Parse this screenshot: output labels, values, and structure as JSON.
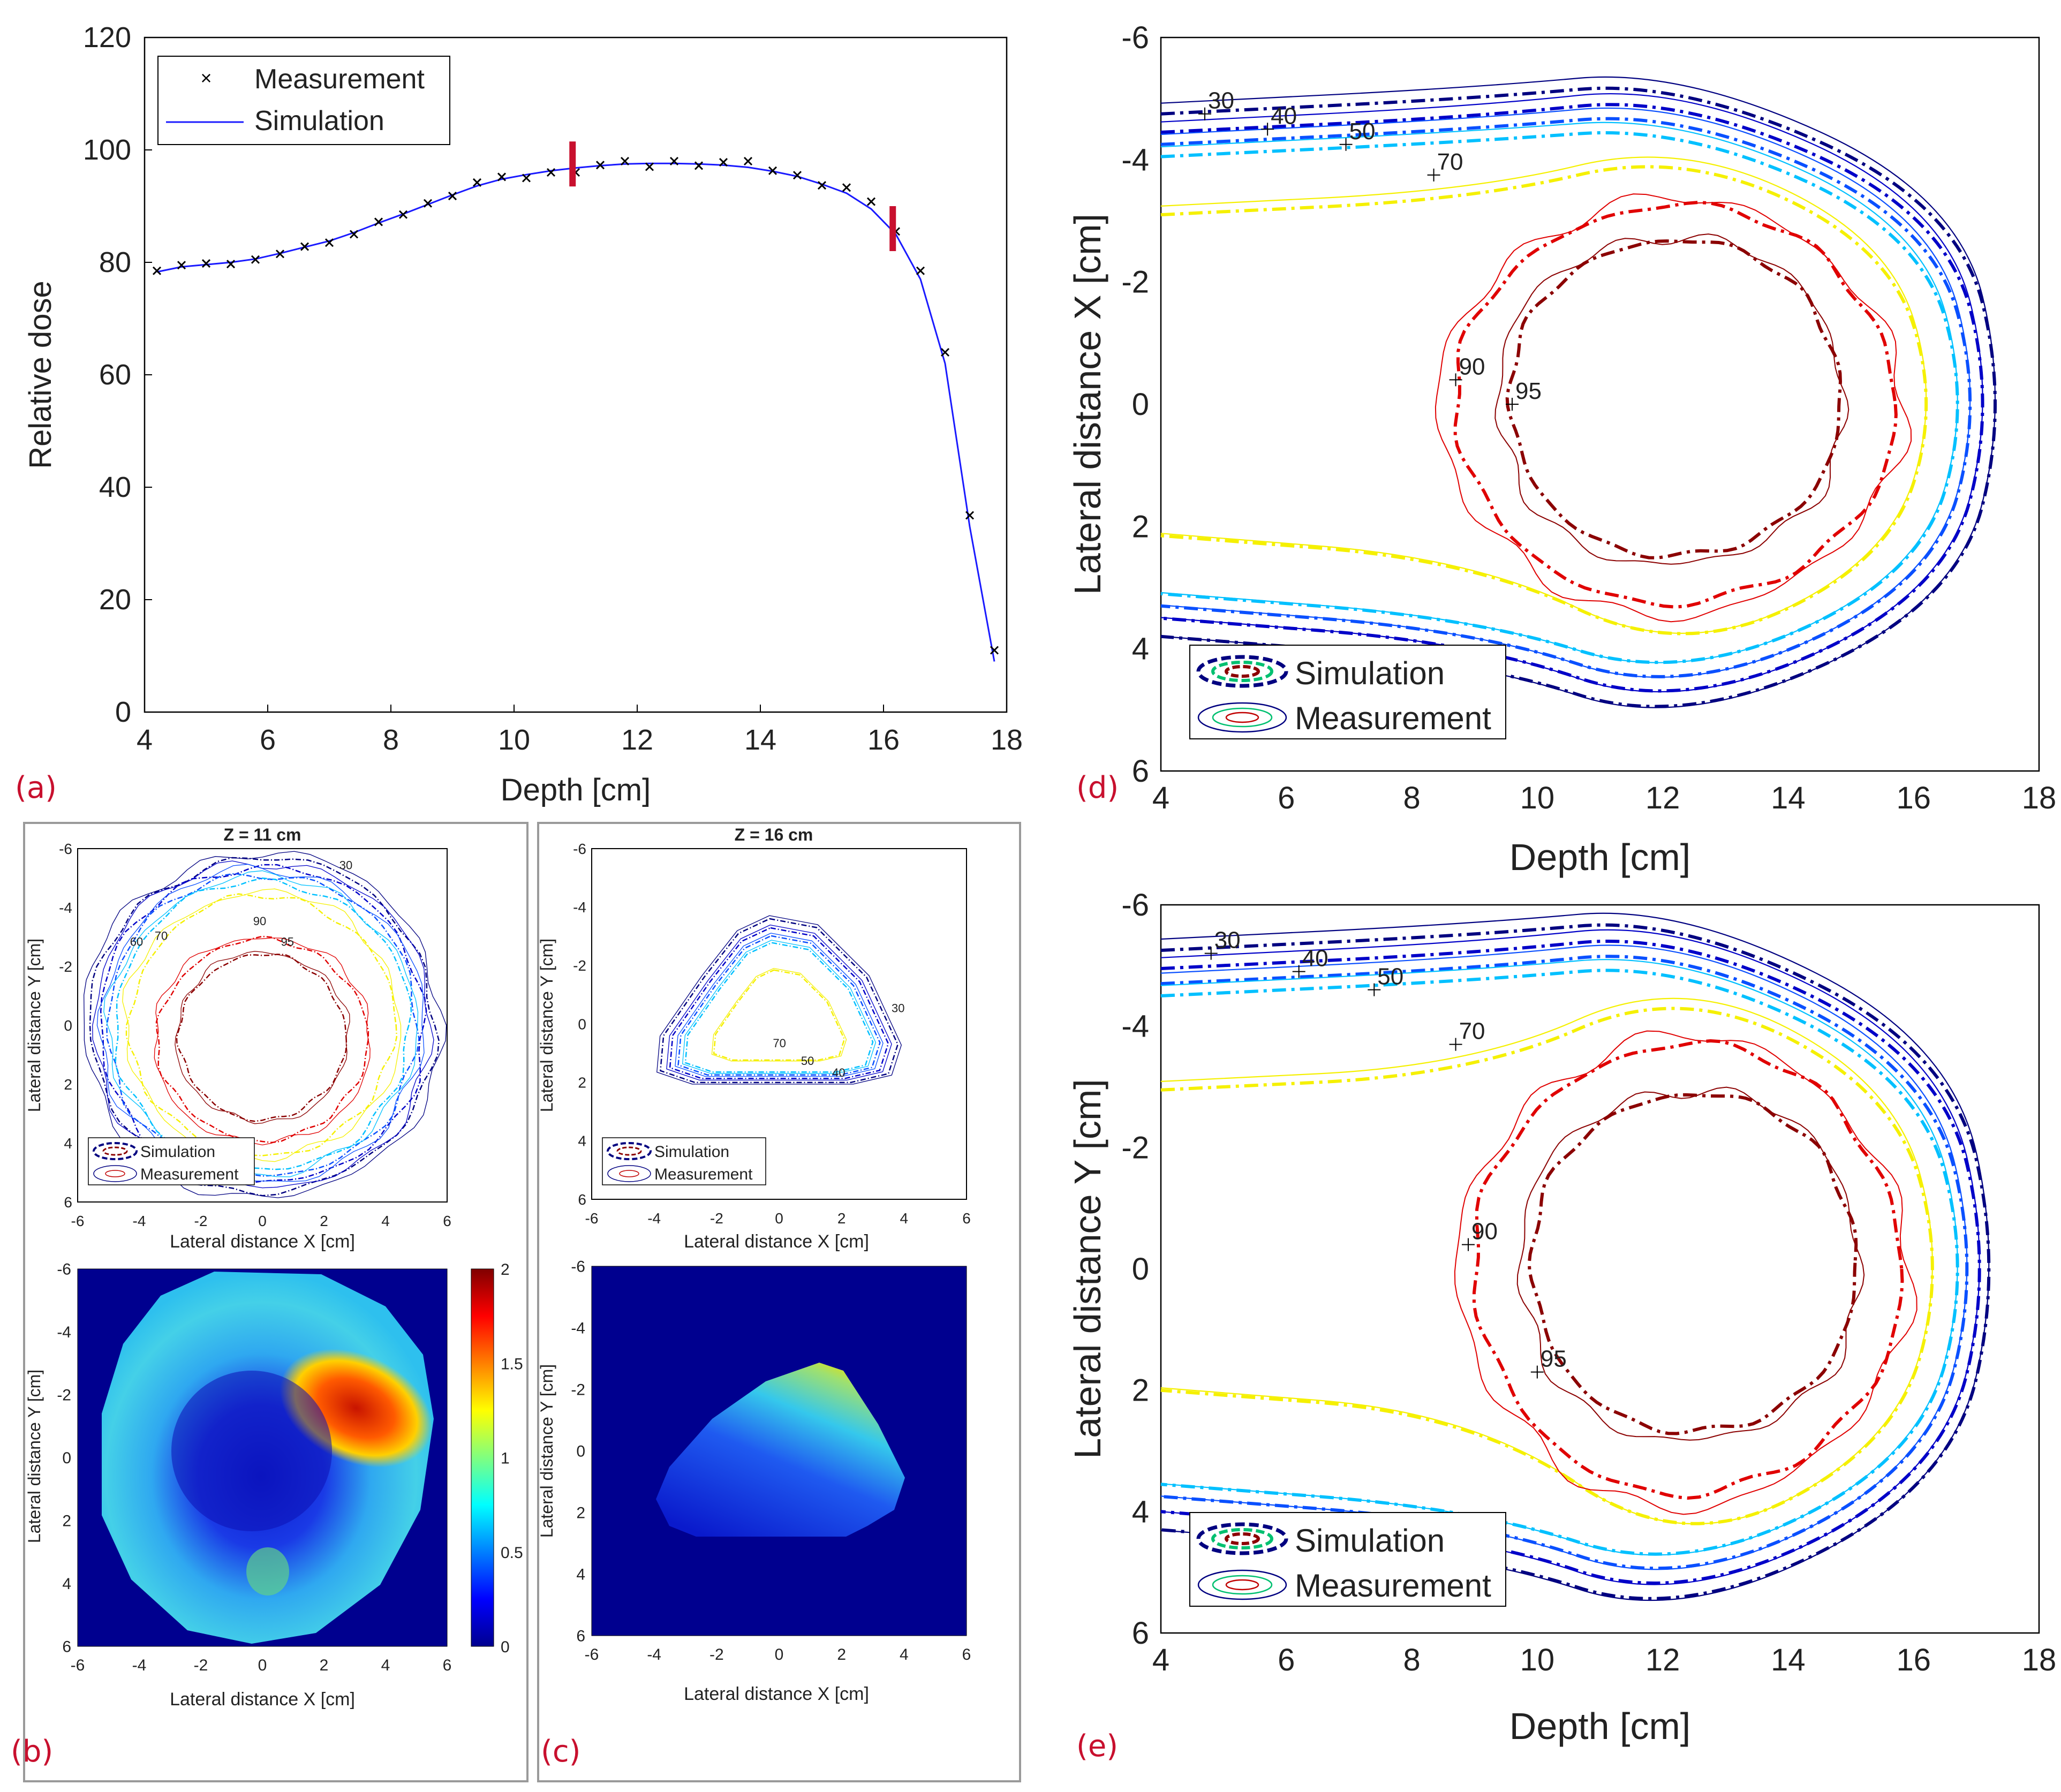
{
  "colors": {
    "panel_label": "#c8102e",
    "marker_bar": "#c8102e",
    "simulation_line": "#1a1aff",
    "measurement_marker": "#000000",
    "frame": "#9a9a9a",
    "iso30": "#000080",
    "iso40": "#0000c8",
    "iso50": "#0a50ff",
    "iso60": "#00c0ff",
    "iso70": "#f5f000",
    "iso90": "#e00000",
    "iso95": "#8b0000"
  },
  "panels": {
    "a": {
      "label": "(a)",
      "xlabel": "Depth [cm]",
      "ylabel": "Relative dose",
      "xlim": [
        4,
        18
      ],
      "ylim": [
        0,
        120
      ],
      "xticks": [
        "4",
        "6",
        "8",
        "10",
        "12",
        "14",
        "16",
        "18"
      ],
      "yticks": [
        "0",
        "20",
        "40",
        "60",
        "80",
        "100",
        "120"
      ],
      "legend": {
        "measurement": "Measurement",
        "simulation": "Simulation"
      }
    },
    "b": {
      "label": "(b)",
      "title": "Z = 11 cm",
      "xlabel": "Lateral distance X [cm]",
      "ylabel": "Lateral distance Y [cm]",
      "ticks": [
        "-6",
        "-4",
        "-2",
        "0",
        "2",
        "4",
        "6"
      ],
      "legend": {
        "simulation": "Simulation",
        "measurement": "Measurement"
      },
      "contour_labels": [
        "30",
        "60",
        "70",
        "90",
        "95"
      ],
      "colorbar_ticks": [
        "0",
        "0.5",
        "1",
        "1.5",
        "2"
      ]
    },
    "c": {
      "label": "(c)",
      "title": "Z = 16 cm",
      "xlabel": "Lateral distance X [cm]",
      "ylabel": "Lateral distance Y [cm]",
      "ticks": [
        "-6",
        "-4",
        "-2",
        "0",
        "2",
        "4",
        "6"
      ],
      "legend": {
        "simulation": "Simulation",
        "measurement": "Measurement"
      },
      "contour_labels": [
        "30",
        "40",
        "50",
        "70"
      ]
    },
    "d": {
      "label": "(d)",
      "xlabel": "Depth [cm]",
      "ylabel": "Lateral distance X [cm]",
      "xticks": [
        "4",
        "6",
        "8",
        "10",
        "12",
        "14",
        "16",
        "18"
      ],
      "yticks": [
        "-6",
        "-4",
        "-2",
        "0",
        "2",
        "4",
        "6"
      ],
      "legend": {
        "simulation": "Simulation",
        "measurement": "Measurement"
      },
      "contour_labels": [
        "30",
        "40",
        "50",
        "70",
        "90",
        "95"
      ]
    },
    "e": {
      "label": "(e)",
      "xlabel": "Depth [cm]",
      "ylabel": "Lateral distance Y [cm]",
      "xticks": [
        "4",
        "6",
        "8",
        "10",
        "12",
        "14",
        "16",
        "18"
      ],
      "yticks": [
        "-6",
        "-4",
        "-2",
        "0",
        "2",
        "4",
        "6"
      ],
      "legend": {
        "simulation": "Simulation",
        "measurement": "Measurement"
      },
      "contour_labels": [
        "30",
        "40",
        "50",
        "70",
        "90",
        "95"
      ]
    }
  },
  "chart_data": [
    {
      "type": "line",
      "panel": "a",
      "xlabel": "Depth [cm]",
      "ylabel": "Relative dose",
      "xlim": [
        4,
        18
      ],
      "ylim": [
        0,
        120
      ],
      "series": [
        {
          "name": "Measurement",
          "style": "marker-x",
          "x": [
            4.2,
            4.6,
            5.0,
            5.4,
            5.8,
            6.2,
            6.6,
            7.0,
            7.4,
            7.8,
            8.2,
            8.6,
            9.0,
            9.4,
            9.8,
            10.2,
            10.6,
            11.0,
            11.4,
            11.8,
            12.2,
            12.6,
            13.0,
            13.4,
            13.8,
            14.2,
            14.6,
            15.0,
            15.4,
            15.8,
            16.2,
            16.6,
            17.0,
            17.4,
            17.8
          ],
          "y": [
            78.5,
            79.5,
            79.8,
            79.7,
            80.5,
            81.5,
            82.8,
            83.5,
            85.0,
            87.2,
            88.5,
            90.5,
            91.8,
            94.2,
            95.2,
            95.0,
            96.0,
            96.0,
            97.3,
            98.0,
            97.0,
            98.0,
            97.2,
            97.8,
            98.0,
            96.3,
            95.5,
            93.7,
            93.3,
            90.8,
            85.5,
            78.5,
            64.0,
            35.0,
            11.0
          ]
        },
        {
          "name": "Simulation",
          "style": "line",
          "x": [
            4.2,
            4.6,
            5.0,
            5.4,
            5.8,
            6.2,
            6.6,
            7.0,
            7.4,
            7.8,
            8.2,
            8.6,
            9.0,
            9.4,
            9.8,
            10.2,
            10.6,
            11.0,
            11.4,
            11.8,
            12.2,
            12.6,
            13.0,
            13.4,
            13.8,
            14.2,
            14.6,
            15.0,
            15.4,
            15.8,
            16.2,
            16.6,
            17.0,
            17.4,
            17.8
          ],
          "y": [
            78.3,
            79.2,
            79.6,
            80.0,
            80.6,
            81.6,
            82.7,
            83.8,
            85.3,
            87.0,
            88.6,
            90.3,
            92.0,
            93.6,
            94.8,
            95.6,
            96.3,
            96.8,
            97.2,
            97.5,
            97.6,
            97.6,
            97.5,
            97.3,
            96.9,
            96.2,
            95.3,
            93.9,
            92.3,
            89.5,
            85.0,
            77.0,
            62.0,
            33.0,
            9.0
          ]
        }
      ],
      "markers": [
        {
          "x": 10.95,
          "y": 97.5,
          "label": ""
        },
        {
          "x": 16.15,
          "y": 86.0,
          "label": ""
        }
      ]
    },
    {
      "type": "line",
      "panel": "b",
      "title": "Z = 11 cm",
      "xlabel": "Lateral distance X [cm]",
      "ylabel": "Lateral distance Y [cm]",
      "xlim": [
        -6,
        6
      ],
      "ylim": [
        -6,
        6
      ],
      "series": [
        {
          "name": "30",
          "rx": 5.6,
          "ry": 5.7,
          "cx": 0,
          "cy": 0,
          "simulation": "dash-dot",
          "measurement": "solid"
        },
        {
          "name": "40",
          "rx": 5.3,
          "ry": 5.4,
          "cx": 0,
          "cy": 0,
          "simulation": "dash-dot",
          "measurement": "solid"
        },
        {
          "name": "50",
          "rx": 5.05,
          "ry": 5.15,
          "cx": 0,
          "cy": 0,
          "simulation": "dash-dot",
          "measurement": "solid"
        },
        {
          "name": "60",
          "rx": 4.8,
          "ry": 4.9,
          "cx": 0,
          "cy": 0,
          "simulation": "dash-dot",
          "measurement": "solid"
        },
        {
          "name": "70",
          "rx": 4.3,
          "ry": 4.4,
          "cx": 0,
          "cy": 0,
          "simulation": "dash-dot",
          "measurement": "solid"
        },
        {
          "name": "90",
          "rx": 3.4,
          "ry": 3.4,
          "cx": 0,
          "cy": 0.5,
          "simulation": "dash-dot",
          "measurement": "solid"
        },
        {
          "name": "95",
          "rx": 2.7,
          "ry": 2.8,
          "cx": 0,
          "cy": 0.4,
          "simulation": "dash-dot",
          "measurement": "solid"
        }
      ]
    },
    {
      "type": "heatmap",
      "panel": "b",
      "xlabel": "Lateral distance X [cm]",
      "ylabel": "Lateral distance Y [cm]",
      "xlim": [
        -6,
        6
      ],
      "ylim": [
        -6,
        6
      ],
      "colorbar_range": [
        0,
        2
      ]
    },
    {
      "type": "line",
      "panel": "c",
      "title": "Z = 16 cm",
      "xlabel": "Lateral distance X [cm]",
      "ylabel": "Lateral distance Y [cm]",
      "xlim": [
        -6,
        6
      ],
      "ylim": [
        -6,
        6
      ],
      "series": [
        {
          "name": "30",
          "scale": 1.0
        },
        {
          "name": "40",
          "scale": 0.92
        },
        {
          "name": "50",
          "scale": 0.85
        },
        {
          "name": "60",
          "scale": 0.79
        },
        {
          "name": "70",
          "scale": 0.55
        }
      ]
    },
    {
      "type": "heatmap",
      "panel": "c",
      "xlabel": "Lateral distance X [cm]",
      "ylabel": "Lateral distance Y [cm]",
      "xlim": [
        -6,
        6
      ],
      "ylim": [
        -6,
        6
      ]
    },
    {
      "type": "line",
      "panel": "d",
      "xlabel": "Depth [cm]",
      "ylabel": "Lateral distance X [cm]",
      "xlim": [
        4,
        18
      ],
      "ylim": [
        -6,
        6
      ],
      "series": [
        {
          "name": "30",
          "y_edge": -4.75,
          "x_tip": 17.5,
          "half_width": 5.3
        },
        {
          "name": "40",
          "y_edge": -4.45,
          "x_tip": 17.3,
          "half_width": 5.05
        },
        {
          "name": "50",
          "y_edge": -4.25,
          "x_tip": 17.1,
          "half_width": 4.8
        },
        {
          "name": "60",
          "y_edge": -4.05,
          "x_tip": 16.9,
          "half_width": 4.55
        },
        {
          "name": "70",
          "y_edge": -3.1,
          "x_tip": 16.4,
          "half_width": 4.15
        },
        {
          "name": "90",
          "x_center": 12.2,
          "y_center": 0.0,
          "rx": 3.5,
          "ry": 3.25
        },
        {
          "name": "95",
          "x_center": 12.2,
          "y_center": -0.1,
          "rx": 2.65,
          "ry": 2.6
        }
      ]
    },
    {
      "type": "line",
      "panel": "e",
      "xlabel": "Depth [cm]",
      "ylabel": "Lateral distance Y [cm]",
      "xlim": [
        4,
        18
      ],
      "ylim": [
        -6,
        6
      ],
      "series": [
        {
          "name": "30",
          "y_edge": -5.25,
          "x_tip": 17.4,
          "half_width": 5.8
        },
        {
          "name": "40",
          "y_edge": -4.95,
          "x_tip": 17.25,
          "half_width": 5.55
        },
        {
          "name": "50",
          "y_edge": -4.7,
          "x_tip": 17.05,
          "half_width": 5.3
        },
        {
          "name": "60",
          "y_edge": -4.5,
          "x_tip": 16.9,
          "half_width": 5.05
        },
        {
          "name": "70",
          "y_edge": -2.95,
          "x_tip": 16.5,
          "half_width": 4.7
        },
        {
          "name": "90",
          "x_center": 12.4,
          "y_center": 0.0,
          "rx": 3.4,
          "ry": 3.7
        },
        {
          "name": "95",
          "x_center": 12.5,
          "y_center": -0.1,
          "rx": 2.6,
          "ry": 2.8
        }
      ]
    }
  ]
}
